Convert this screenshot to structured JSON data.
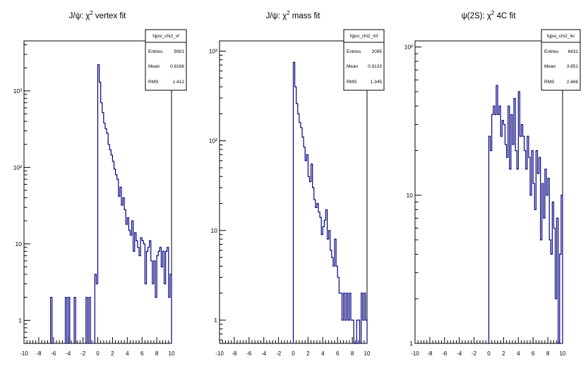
{
  "chart_data": [
    {
      "type": "histogram",
      "title": "J/ψ: χ² vertex fit",
      "title_parts": {
        "pre": "J/ψ: χ",
        "sup": "2",
        "post": " vertex fit"
      },
      "yscale": "log",
      "xlim": [
        -10,
        10
      ],
      "ylim": [
        0.5,
        4500
      ],
      "bin_width": 0.2,
      "x_ticks": [
        -10,
        -8,
        -6,
        -4,
        -2,
        0,
        2,
        4,
        6,
        8,
        10
      ],
      "y_tick_labels": [
        "1",
        "10",
        "10²",
        "10³"
      ],
      "stats": {
        "name": "hjpsi_chi2_vf",
        "entries_label": "Entries",
        "entries": "5901",
        "mean_label": "Mean",
        "mean": "0.8166",
        "rms_label": "RMS",
        "rms": "1.412"
      },
      "bins": [
        [
          -6.4,
          2
        ],
        [
          -4.4,
          2
        ],
        [
          -4.0,
          2
        ],
        [
          -3.2,
          2
        ],
        [
          -1.6,
          2
        ],
        [
          -1.2,
          2
        ],
        [
          -0.4,
          4
        ],
        [
          -0.2,
          3
        ],
        [
          0.0,
          2200
        ],
        [
          0.2,
          1300
        ],
        [
          0.4,
          700
        ],
        [
          0.6,
          520
        ],
        [
          0.8,
          380
        ],
        [
          1.0,
          320
        ],
        [
          1.2,
          280
        ],
        [
          1.4,
          200
        ],
        [
          1.6,
          170
        ],
        [
          1.8,
          145
        ],
        [
          2.0,
          120
        ],
        [
          2.2,
          95
        ],
        [
          2.4,
          80
        ],
        [
          2.6,
          70
        ],
        [
          2.8,
          42
        ],
        [
          3.0,
          55
        ],
        [
          3.2,
          32
        ],
        [
          3.4,
          40
        ],
        [
          3.6,
          28
        ],
        [
          3.8,
          18
        ],
        [
          4.0,
          22
        ],
        [
          4.2,
          15
        ],
        [
          4.4,
          13
        ],
        [
          4.6,
          20
        ],
        [
          4.8,
          8
        ],
        [
          5.0,
          14
        ],
        [
          5.2,
          11
        ],
        [
          5.4,
          9
        ],
        [
          5.6,
          7
        ],
        [
          5.8,
          12
        ],
        [
          6.0,
          11
        ],
        [
          6.2,
          10
        ],
        [
          6.4,
          3
        ],
        [
          6.6,
          8
        ],
        [
          6.8,
          9
        ],
        [
          7.0,
          11
        ],
        [
          7.2,
          6
        ],
        [
          7.4,
          3
        ],
        [
          7.6,
          6
        ],
        [
          7.8,
          2
        ],
        [
          8.0,
          7
        ],
        [
          8.2,
          8
        ],
        [
          8.4,
          9
        ],
        [
          8.6,
          5
        ],
        [
          8.8,
          8
        ],
        [
          9.0,
          3
        ],
        [
          9.2,
          8
        ],
        [
          9.4,
          9
        ],
        [
          9.6,
          2
        ],
        [
          9.8,
          4
        ]
      ]
    },
    {
      "type": "histogram",
      "title": "J/ψ: χ² mass fit",
      "title_parts": {
        "pre": "J/ψ: χ",
        "sup": "2",
        "post": " mass fit"
      },
      "yscale": "log",
      "xlim": [
        -10,
        10
      ],
      "ylim": [
        0.55,
        1300
      ],
      "bin_width": 0.2,
      "x_ticks": [
        -10,
        -8,
        -6,
        -4,
        -2,
        0,
        2,
        4,
        6,
        8,
        10
      ],
      "y_tick_labels": [
        "1",
        "10",
        "10²",
        "10³"
      ],
      "stats": {
        "name": "hjpsi_chi2_mf",
        "entries_label": "Entries",
        "entries": "2095",
        "mean_label": "Mean",
        "mean": "0.9133",
        "rms_label": "RMS",
        "rms": "1.345"
      },
      "bins": [
        [
          0.0,
          750
        ],
        [
          0.2,
          400
        ],
        [
          0.4,
          260
        ],
        [
          0.6,
          200
        ],
        [
          0.8,
          160
        ],
        [
          1.0,
          140
        ],
        [
          1.2,
          110
        ],
        [
          1.4,
          85
        ],
        [
          1.6,
          60
        ],
        [
          1.8,
          70
        ],
        [
          2.0,
          40
        ],
        [
          2.2,
          35
        ],
        [
          2.4,
          55
        ],
        [
          2.6,
          30
        ],
        [
          2.8,
          22
        ],
        [
          3.0,
          18
        ],
        [
          3.2,
          20
        ],
        [
          3.4,
          16
        ],
        [
          3.6,
          14
        ],
        [
          3.8,
          9
        ],
        [
          4.0,
          11
        ],
        [
          4.2,
          13
        ],
        [
          4.4,
          17
        ],
        [
          4.6,
          8
        ],
        [
          4.8,
          10
        ],
        [
          5.0,
          6
        ],
        [
          5.2,
          5
        ],
        [
          5.4,
          4
        ],
        [
          5.6,
          8
        ],
        [
          5.8,
          4
        ],
        [
          6.0,
          3
        ],
        [
          6.2,
          2
        ],
        [
          6.4,
          2
        ],
        [
          6.6,
          1
        ],
        [
          6.8,
          2
        ],
        [
          7.0,
          1
        ],
        [
          7.2,
          2
        ],
        [
          7.4,
          1
        ],
        [
          7.6,
          2
        ],
        [
          7.8,
          1
        ],
        [
          8.0,
          1
        ],
        [
          8.2,
          0
        ],
        [
          8.4,
          0
        ],
        [
          8.6,
          1
        ],
        [
          8.8,
          1
        ],
        [
          9.0,
          0
        ],
        [
          9.2,
          2
        ],
        [
          9.4,
          1
        ],
        [
          9.6,
          2
        ],
        [
          9.8,
          1
        ]
      ]
    },
    {
      "type": "histogram",
      "title": "ψ(2S): χ² 4C fit",
      "title_parts": {
        "pre": "ψ(2S): χ",
        "sup": "2",
        "post": " 4C fit"
      },
      "yscale": "log",
      "xlim": [
        -10,
        10
      ],
      "ylim": [
        1,
        110
      ],
      "bin_width": 0.2,
      "x_ticks": [
        -10,
        -8,
        -6,
        -4,
        -2,
        0,
        2,
        4,
        6,
        8,
        10
      ],
      "y_tick_labels": [
        "1",
        "10",
        "10²"
      ],
      "stats": {
        "name": "hjpsi_chi2_4c",
        "entries_label": "Entries",
        "entries": "6431",
        "mean_label": "Mean",
        "mean": "3.851",
        "rms_label": "RMS",
        "rms": "2.466"
      },
      "bins": [
        [
          0.0,
          25
        ],
        [
          0.2,
          20
        ],
        [
          0.4,
          35
        ],
        [
          0.6,
          40
        ],
        [
          0.8,
          35
        ],
        [
          1.0,
          55
        ],
        [
          1.2,
          35
        ],
        [
          1.4,
          40
        ],
        [
          1.6,
          25
        ],
        [
          1.8,
          32
        ],
        [
          2.0,
          30
        ],
        [
          2.2,
          22
        ],
        [
          2.4,
          18
        ],
        [
          2.6,
          40
        ],
        [
          2.8,
          15
        ],
        [
          3.0,
          35
        ],
        [
          3.2,
          22
        ],
        [
          3.4,
          45
        ],
        [
          3.6,
          20
        ],
        [
          3.8,
          15
        ],
        [
          4.0,
          50
        ],
        [
          4.2,
          25
        ],
        [
          4.4,
          30
        ],
        [
          4.6,
          25
        ],
        [
          4.8,
          20
        ],
        [
          5.0,
          15
        ],
        [
          5.2,
          25
        ],
        [
          5.4,
          18
        ],
        [
          5.6,
          10
        ],
        [
          5.8,
          20
        ],
        [
          6.0,
          12
        ],
        [
          6.2,
          8
        ],
        [
          6.4,
          20
        ],
        [
          6.6,
          14
        ],
        [
          6.8,
          18
        ],
        [
          7.0,
          5
        ],
        [
          7.2,
          12
        ],
        [
          7.4,
          7
        ],
        [
          7.6,
          15
        ],
        [
          7.8,
          10
        ],
        [
          8.0,
          13
        ],
        [
          8.2,
          5
        ],
        [
          8.4,
          4
        ],
        [
          8.6,
          9
        ],
        [
          8.8,
          6
        ],
        [
          9.0,
          2
        ],
        [
          9.2,
          7
        ],
        [
          9.4,
          1
        ],
        [
          9.6,
          4
        ],
        [
          9.8,
          10
        ]
      ]
    }
  ]
}
